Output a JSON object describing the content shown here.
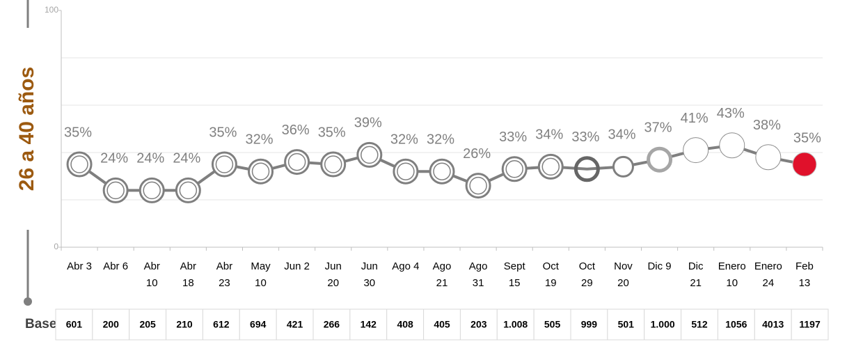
{
  "chart_data": {
    "type": "line",
    "y_label": "26 a 40 años",
    "categories": [
      "Abr 3",
      "Abr 6",
      "Abr 10",
      "Abr 18",
      "Abr 23",
      "May 10",
      "Jun 2",
      "Jun 20",
      "Jun 30",
      "Ago 4",
      "Ago 21",
      "Ago 31",
      "Sept 15",
      "Oct 19",
      "Oct 29",
      "Nov 20",
      "Dic 9",
      "Dic 21",
      "Enero 10",
      "Enero 24",
      "Feb 13"
    ],
    "values": [
      35,
      24,
      24,
      24,
      35,
      32,
      36,
      35,
      39,
      32,
      32,
      26,
      33,
      34,
      33,
      34,
      37,
      41,
      43,
      38,
      35
    ],
    "value_labels": [
      "35%",
      "24%",
      "24%",
      "24%",
      "35%",
      "32%",
      "36%",
      "35%",
      "39%",
      "32%",
      "32%",
      "26%",
      "33%",
      "34%",
      "33%",
      "34%",
      "37%",
      "41%",
      "43%",
      "38%",
      "35%"
    ],
    "color": "#7f7f7f",
    "highlight_color": "#e0112b",
    "y_label_color": "#9c5a10",
    "ylim": [
      0,
      100
    ],
    "yticks": [
      0,
      100
    ],
    "grid_lines": [
      20,
      40,
      60,
      80
    ],
    "base_label": "Base:",
    "base": [
      "601",
      "200",
      "205",
      "210",
      "612",
      "694",
      "421",
      "266",
      "142",
      "408",
      "405",
      "203",
      "1.008",
      "505",
      "999",
      "501",
      "1.000",
      "512",
      "1056",
      "4013",
      "1197"
    ]
  }
}
